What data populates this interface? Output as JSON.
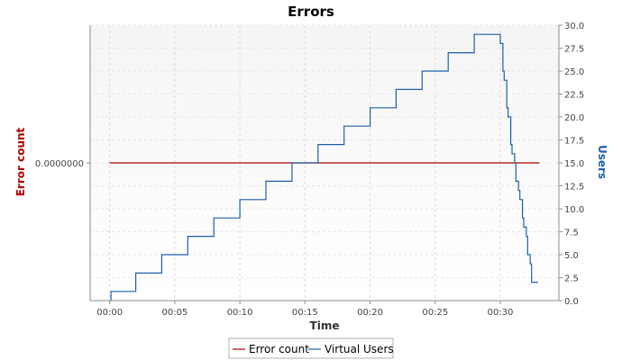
{
  "chart_data": {
    "type": "line",
    "title": "Errors",
    "xlabel": "Time",
    "ylabel_left": "Error count",
    "ylabel_right": "Users",
    "x_ticks": [
      "00:00",
      "00:05",
      "00:10",
      "00:15",
      "00:20",
      "00:25",
      "00:30"
    ],
    "x_tick_minutes": [
      0,
      5,
      10,
      15,
      20,
      25,
      30
    ],
    "xlim_minutes": [
      -1.5,
      34.5
    ],
    "left_ticks": [
      "0.0000000"
    ],
    "right_ticks": [
      "0.0",
      "2.5",
      "5.0",
      "7.5",
      "10.0",
      "12.5",
      "15.0",
      "17.5",
      "20.0",
      "22.5",
      "25.0",
      "27.5",
      "30.0"
    ],
    "right_ylim": [
      0,
      30
    ],
    "grid": true,
    "legend_position": "bottom",
    "colors": {
      "error_count": "#aa0000",
      "virtual_users": "#1f5fa8",
      "left_axis_label": "#b30000",
      "right_axis_label": "#1f5fa8"
    },
    "series": [
      {
        "name": "Error count",
        "axis": "left",
        "x": [
          "00:00",
          "00:33"
        ],
        "y": [
          0,
          0
        ]
      },
      {
        "name": "Virtual Users",
        "axis": "right",
        "step": true,
        "x_minutes": [
          0,
          0.1,
          2,
          4,
          6,
          8,
          10,
          12,
          14,
          16,
          18,
          20,
          22,
          24,
          26,
          28,
          30,
          30.2,
          30.3,
          30.5,
          30.6,
          30.8,
          30.9,
          31.1,
          31.2,
          31.4,
          31.5,
          31.7,
          31.8,
          32.0,
          32.1,
          32.3,
          32.4,
          32.6,
          32.7,
          32.9
        ],
        "y": [
          0,
          1,
          3,
          5,
          7,
          9,
          11,
          13,
          15,
          17,
          19,
          21,
          23,
          25,
          27,
          29,
          28,
          25,
          24,
          21,
          20,
          17,
          16,
          15,
          13,
          12,
          11,
          9,
          8,
          7,
          5,
          4,
          2,
          2,
          2,
          2
        ]
      }
    ]
  }
}
